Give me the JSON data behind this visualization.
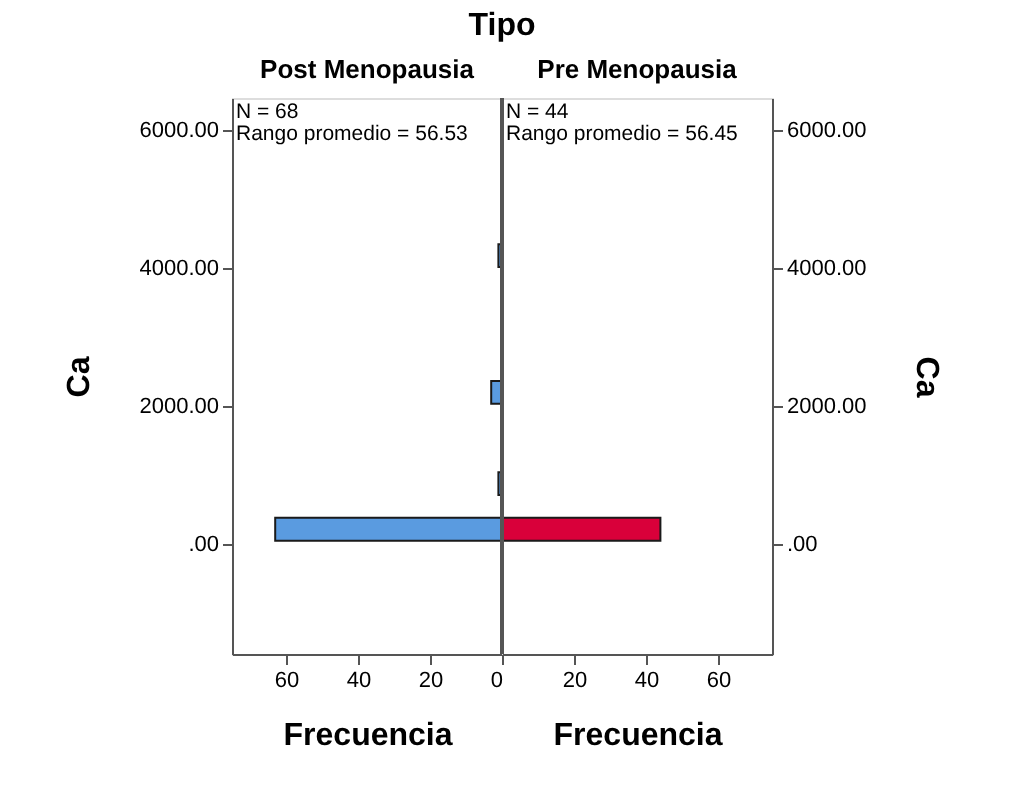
{
  "chart_data": [
    {
      "type": "histogram",
      "orientation": "horizontal",
      "title": "Tipo",
      "subtitle": "Post Menopausia",
      "xlabel": "Frecuencia",
      "ylabel": "Ca",
      "bins": [
        45,
        376,
        707,
        1038,
        1369,
        1700,
        2031,
        2362,
        2693,
        3024,
        3355,
        3686,
        4017,
        4348
      ],
      "values": [
        63,
        0,
        1,
        0,
        0,
        0,
        3,
        0,
        0,
        0,
        0,
        0,
        1
      ],
      "color": "#5a9be0",
      "xlim": [
        75,
        0
      ],
      "xticks": [
        60,
        40,
        20,
        0
      ],
      "ylim": [
        -1600,
        6470
      ],
      "yticks": [
        {
          "value": 0,
          "label": ".00"
        },
        {
          "value": 2000,
          "label": "2000.00"
        },
        {
          "value": 4000,
          "label": "4000.00"
        },
        {
          "value": 6000,
          "label": "6000.00"
        }
      ],
      "annotations": [
        "N = 68",
        "Rango promedio = 56.53"
      ],
      "grid": false
    },
    {
      "type": "histogram",
      "orientation": "horizontal",
      "subtitle": "Pre Menopausia",
      "xlabel": "Frecuencia",
      "ylabel": "Ca",
      "bins": [
        45,
        376,
        707,
        1038,
        1369,
        1700,
        2031,
        2362,
        2693,
        3024,
        3355,
        3686,
        4017,
        4348
      ],
      "values": [
        44,
        0,
        0,
        0,
        0,
        0,
        0,
        0,
        0,
        0,
        0,
        0,
        0
      ],
      "color": "#d9003a",
      "xlim": [
        0,
        75
      ],
      "xticks": [
        {
          "value": 0,
          "label": null
        },
        20,
        40,
        60
      ],
      "ylim": [
        -1600,
        6470
      ],
      "yticks": [
        {
          "value": 0,
          "label": ".00"
        },
        {
          "value": 2000,
          "label": "2000.00"
        },
        {
          "value": 4000,
          "label": "4000.00"
        },
        {
          "value": 6000,
          "label": "6000.00"
        }
      ],
      "annotations": [
        "N = 44",
        "Rango promedio = 56.45"
      ],
      "grid": false
    }
  ]
}
